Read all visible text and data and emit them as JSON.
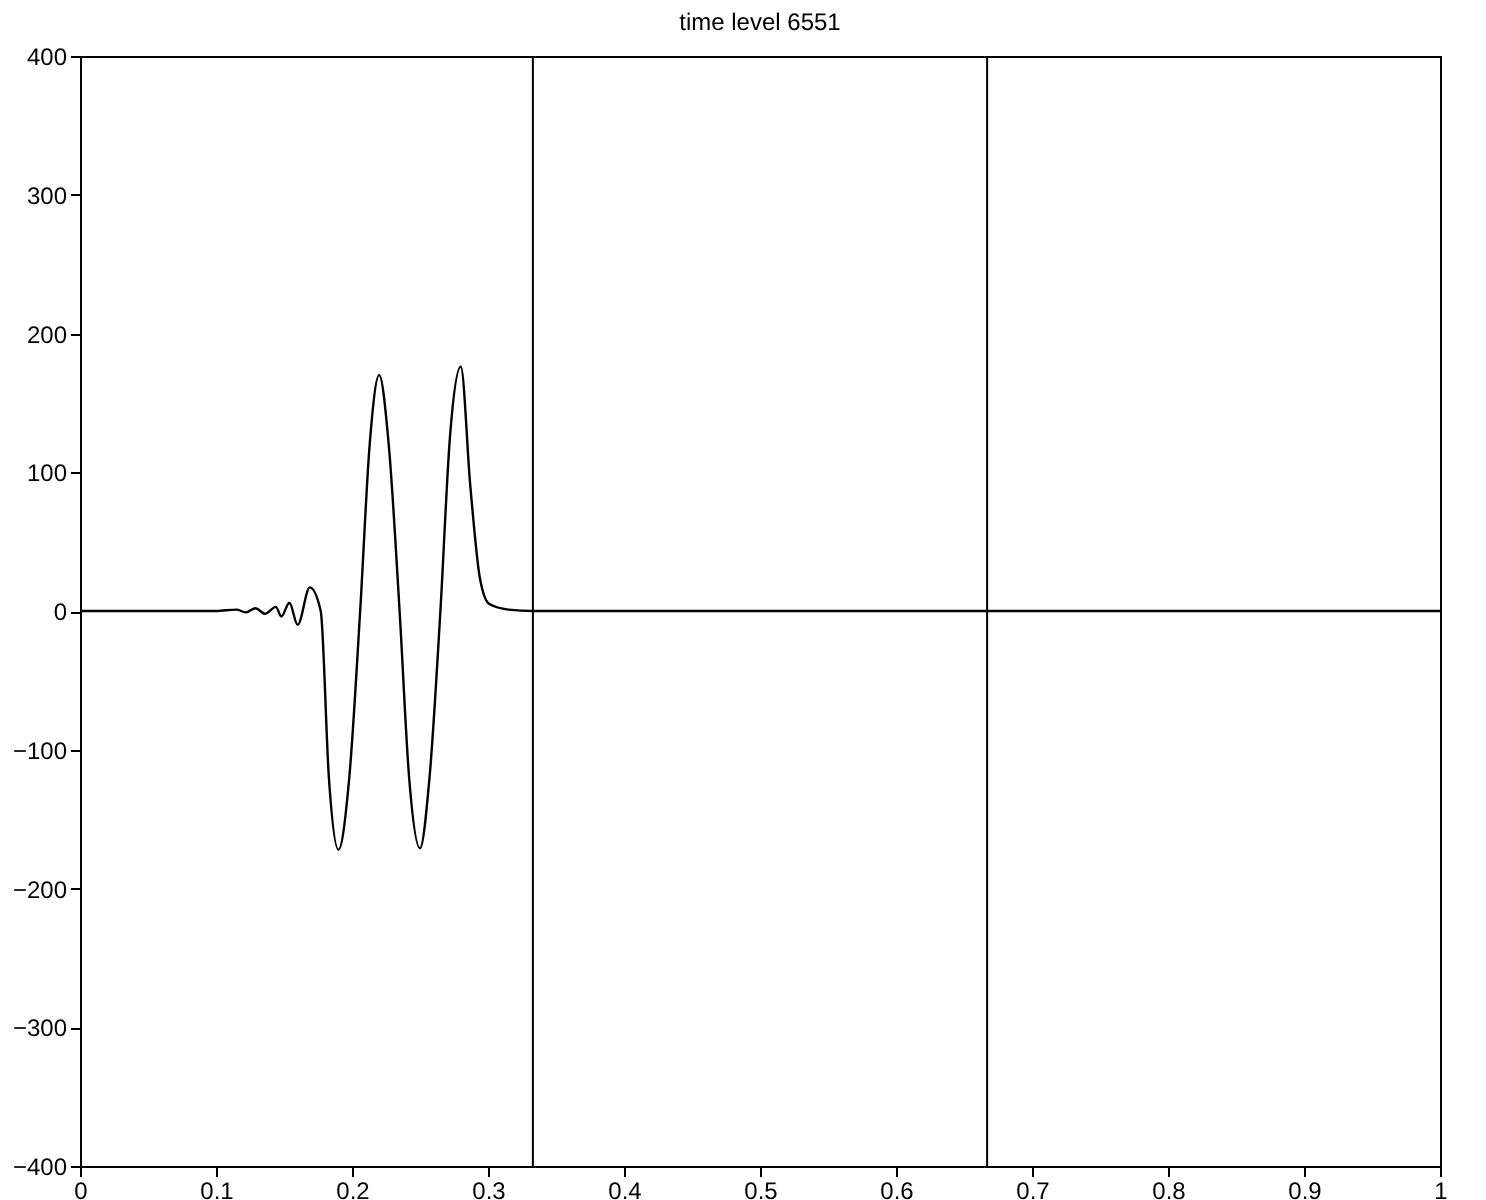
{
  "chart_data": {
    "type": "line",
    "title": "time level 6551",
    "x": [
      0,
      0.02,
      0.04,
      0.06,
      0.08,
      0.1,
      0.115,
      0.122,
      0.129,
      0.136,
      0.144,
      0.148,
      0.154,
      0.16,
      0.169,
      0.177,
      0.183,
      0.19,
      0.198,
      0.206,
      0.213,
      0.22,
      0.227,
      0.235,
      0.242,
      0.25,
      0.257,
      0.265,
      0.272,
      0.28,
      0.287,
      0.294,
      0.301,
      0.315,
      0.333,
      0.5,
      0.667,
      0.8,
      1
    ],
    "series": [
      {
        "color": "#000000",
        "values": [
          0,
          0,
          0,
          0,
          0,
          0,
          1,
          -1,
          2,
          -2,
          3,
          -4,
          6,
          -10,
          17,
          0,
          -120,
          -172,
          -120,
          0,
          120,
          170,
          120,
          0,
          -120,
          -171,
          -120,
          0,
          125,
          176,
          90,
          24,
          5,
          1,
          0,
          0,
          0,
          0,
          0
        ]
      }
    ],
    "xlim": [
      0,
      1
    ],
    "ylim": [
      -400,
      400
    ],
    "xticks": [
      0,
      0.1,
      0.2,
      0.3,
      0.4,
      0.5,
      0.6,
      0.7,
      0.8,
      0.9,
      1
    ],
    "yticks": [
      -400,
      -300,
      -200,
      -100,
      0,
      100,
      200,
      300,
      400
    ],
    "ref_lines": [
      {
        "axis": "x",
        "value": 0.333,
        "color": "#000000"
      },
      {
        "axis": "x",
        "value": 0.667,
        "color": "#000000"
      }
    ],
    "grid": false,
    "marker": "none",
    "line_style": "solid"
  }
}
